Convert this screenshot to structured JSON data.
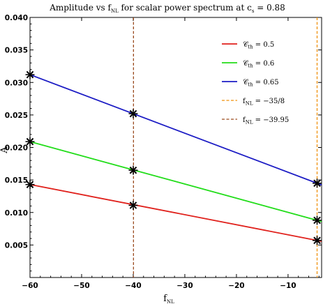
{
  "chart_data": {
    "type": "line",
    "title": {
      "prefix": "Amplitude vs f",
      "sub": "NL",
      "middle": " for scalar power spectrum at c",
      "sub2": "s",
      "suffix": " = 0.88"
    },
    "xlabel": {
      "main": "f",
      "sub": "NL"
    },
    "ylabel": "A",
    "xlim": [
      -60,
      -3.5
    ],
    "ylim": [
      0.0,
      0.04
    ],
    "xticks": [
      -60,
      -50,
      -40,
      -30,
      -20,
      -10
    ],
    "xtick_labels": [
      "−60",
      "−50",
      "−40",
      "−30",
      "−20",
      "−10"
    ],
    "yticks": [
      0.005,
      0.01,
      0.015,
      0.02,
      0.025,
      0.03,
      0.035,
      0.04
    ],
    "ytick_labels": [
      "0.005",
      "0.010",
      "0.015",
      "0.020",
      "0.025",
      "0.030",
      "0.035",
      "0.040"
    ],
    "grid": false,
    "legend_position": "top-right",
    "series": [
      {
        "name": "C_th = 0.5",
        "label_symbol": "𝒞",
        "label_sub": "th",
        "label_value": " = 0.5",
        "color": "#e0201b",
        "x": [
          -60,
          -40,
          -4.375
        ],
        "y": [
          0.0143,
          0.0111,
          0.0057
        ]
      },
      {
        "name": "C_th = 0.6",
        "label_symbol": "𝒞",
        "label_sub": "th",
        "label_value": " = 0.6",
        "color": "#22dd1a",
        "x": [
          -60,
          -40,
          -4.375
        ],
        "y": [
          0.0209,
          0.0165,
          0.0088
        ]
      },
      {
        "name": "C_th = 0.65",
        "label_symbol": "𝒞",
        "label_sub": "th",
        "label_value": " = 0.65",
        "color": "#1b1bc4",
        "x": [
          -60,
          -40,
          -4.375
        ],
        "y": [
          0.0312,
          0.0252,
          0.0145
        ]
      }
    ],
    "vlines": [
      {
        "name": "f_NL = -35/8",
        "label_main": "f",
        "label_sub": "NL",
        "label_value": " = −35/8",
        "x": -4.375,
        "color": "#f0900a"
      },
      {
        "name": "f_NL = -39.95",
        "label_main": "f",
        "label_sub": "NL",
        "label_value": " = −39.95",
        "x": -39.95,
        "color": "#9a4a1e"
      }
    ]
  }
}
